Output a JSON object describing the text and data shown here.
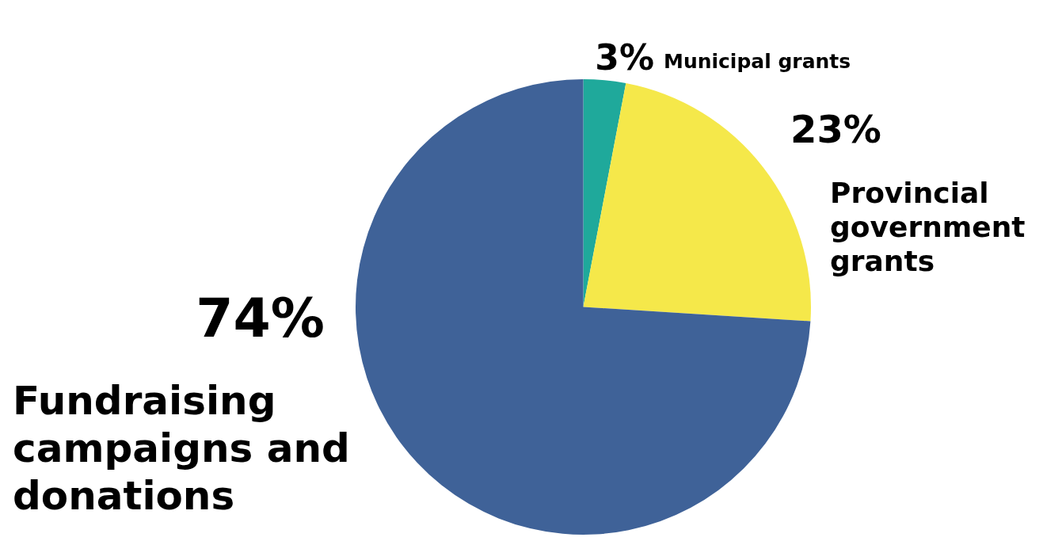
{
  "chart_data": {
    "type": "pie",
    "categories": [
      "Municipal grants",
      "Provincial government grants",
      "Fundraising campaigns and donations"
    ],
    "values": [
      3,
      23,
      74
    ],
    "value_labels": [
      "3%",
      "23%",
      "74%"
    ],
    "colors": [
      "#1fa99b",
      "#f5e84a",
      "#3f6298"
    ],
    "legend": false
  }
}
